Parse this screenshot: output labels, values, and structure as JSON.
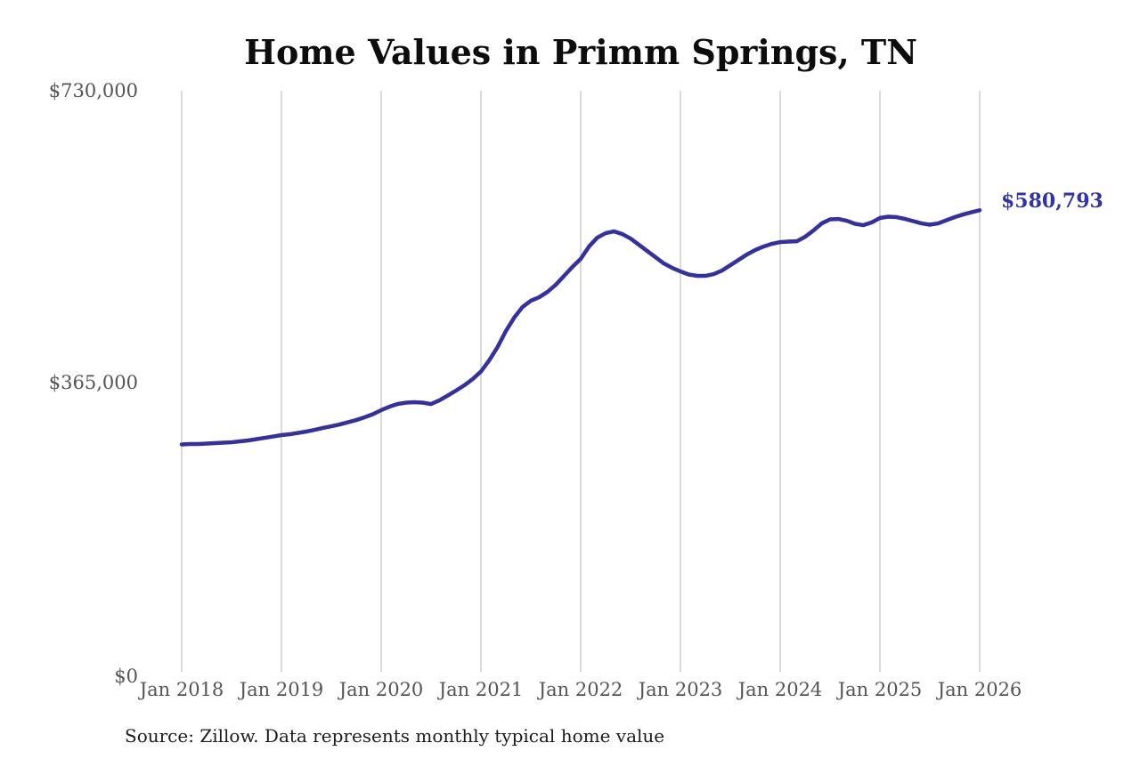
{
  "page": {
    "background": "#ffffff"
  },
  "header": {
    "title": "Home Values in Primm Springs, TN"
  },
  "chart_data": {
    "type": "line",
    "title": "Home Values in Primm Springs, TN",
    "xlabel": "",
    "ylabel": "",
    "ylim": [
      0,
      730000
    ],
    "grid": "vertical-only",
    "legend": "none",
    "frequency": "monthly",
    "x_start": "Jan 2018",
    "x_end": "Jan 2026",
    "x_tick_labels": [
      "Jan 2018",
      "Jan 2019",
      "Jan 2020",
      "Jan 2021",
      "Jan 2022",
      "Jan 2023",
      "Jan 2024",
      "Jan 2025",
      "Jan 2026"
    ],
    "y_ticks": [
      {
        "label": "$730,000",
        "value": 730000
      },
      {
        "label": "$365,000",
        "value": 365000
      },
      {
        "label": "$0",
        "value": 0
      }
    ],
    "series": [
      {
        "name": "Monthly typical home value",
        "values": [
          286100,
          286600,
          286600,
          287200,
          287700,
          288300,
          288800,
          290000,
          291100,
          292800,
          294400,
          296100,
          297800,
          298900,
          300600,
          302300,
          304500,
          306800,
          309000,
          311200,
          314000,
          316800,
          320200,
          324100,
          329200,
          333600,
          337000,
          338700,
          339200,
          338700,
          336900,
          341500,
          347600,
          353800,
          360500,
          368300,
          377800,
          391900,
          408600,
          428800,
          445600,
          459000,
          466900,
          471300,
          478000,
          487000,
          498200,
          509400,
          519500,
          535100,
          546300,
          551900,
          554200,
          550800,
          545200,
          537400,
          529500,
          521700,
          513900,
          508300,
          503800,
          499900,
          498200,
          498200,
          500400,
          504900,
          511600,
          518300,
          525100,
          530700,
          535100,
          538500,
          540700,
          541300,
          541800,
          547400,
          555300,
          564200,
          569300,
          569800,
          567600,
          563700,
          562000,
          565400,
          571000,
          572700,
          572100,
          569900,
          567100,
          564200,
          562600,
          564200,
          568200,
          572100,
          575400,
          578200,
          580793
        ]
      }
    ],
    "end_label": "$580,793",
    "end_value": 580793,
    "line_color": "#34309f",
    "end_label_color": "#3333a8",
    "grid_color": "#c6c6c6",
    "axis_text_color": "#555555"
  },
  "footer": {
    "source": "Source: Zillow. Data represents monthly typical home value"
  }
}
